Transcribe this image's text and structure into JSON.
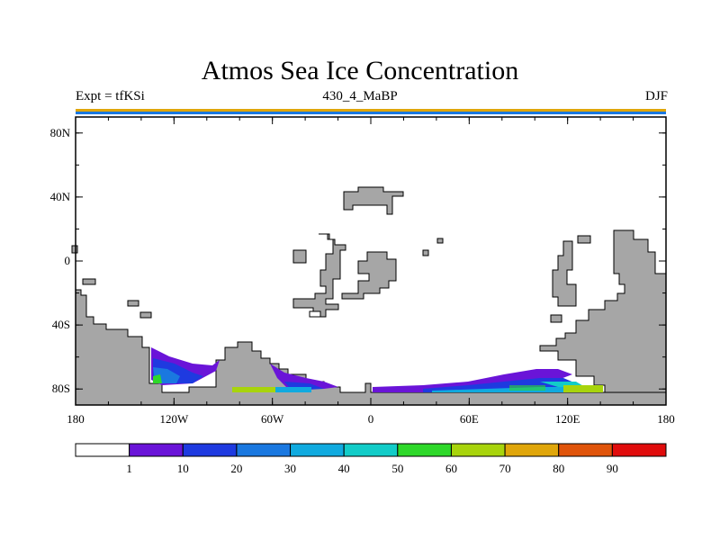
{
  "chart_data": {
    "type": "heatmap",
    "title": "Atmos Sea Ice Concentration",
    "left_label": "Expt = tfKSi",
    "center_label": "430_4_MaBP",
    "right_label": "DJF",
    "x_ticks": [
      "180",
      "120W",
      "60W",
      "0",
      "60E",
      "120E",
      "180"
    ],
    "x_tick_values": [
      -180,
      -120,
      -60,
      0,
      60,
      120,
      180
    ],
    "y_ticks": [
      "80N",
      "40N",
      "0",
      "40S",
      "80S"
    ],
    "y_tick_values": [
      80,
      40,
      0,
      -40,
      -80
    ],
    "xlim": [
      -180,
      180
    ],
    "ylim": [
      -90,
      90
    ],
    "colorbar": {
      "labels": [
        "1",
        "10",
        "20",
        "30",
        "40",
        "50",
        "60",
        "70",
        "80",
        "90"
      ],
      "colors": [
        "#ffffff",
        "#6a14d8",
        "#1e3ae0",
        "#1a78e0",
        "#10aadf",
        "#12ccc8",
        "#2ed82a",
        "#a8d40c",
        "#e0a60a",
        "#e0540a",
        "#e00c0c"
      ]
    },
    "land_color": "#a6a6a6"
  }
}
